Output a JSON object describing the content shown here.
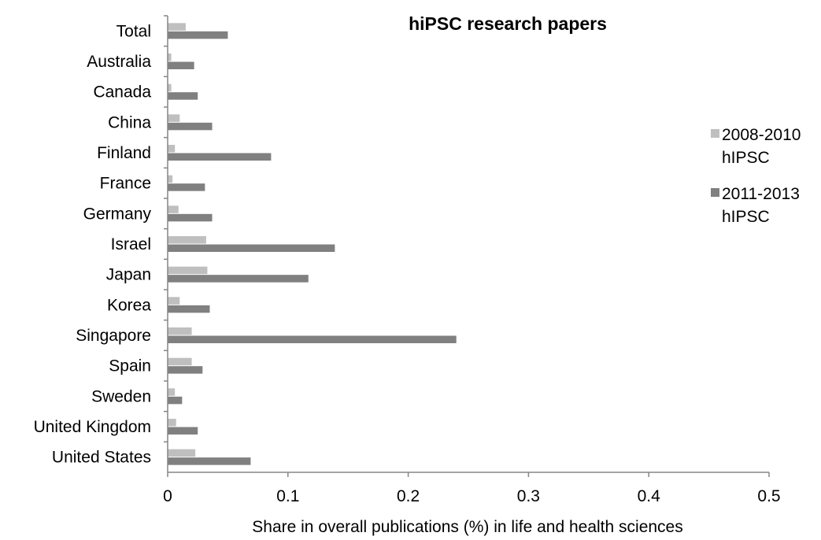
{
  "chart_data": {
    "type": "bar",
    "orientation": "horizontal",
    "title": "hiPSC research papers",
    "xlabel": "Share in overall publications (%) in life and health sciences",
    "ylabel": "",
    "xlim": [
      0,
      0.5
    ],
    "xticks": [
      "0",
      "0.1",
      "0.2",
      "0.3",
      "0.4",
      "0.5"
    ],
    "grid": false,
    "legend_position": "right",
    "categories": [
      "Total",
      "Australia",
      "Canada",
      "China",
      "Finland",
      "France",
      "Germany",
      "Israel",
      "Japan",
      "Korea",
      "Singapore",
      "Spain",
      "Sweden",
      "United Kingdom",
      "United States"
    ],
    "series": [
      {
        "name": "2008-2010",
        "name_line2": "hIPSC",
        "color": "#BFBFBF",
        "values": [
          0.015,
          0.003,
          0.003,
          0.01,
          0.006,
          0.004,
          0.009,
          0.032,
          0.033,
          0.01,
          0.02,
          0.02,
          0.006,
          0.007,
          0.023
        ]
      },
      {
        "name": "2011-2013",
        "name_line2": "hIPSC",
        "color": "#808080",
        "values": [
          0.05,
          0.022,
          0.025,
          0.037,
          0.086,
          0.031,
          0.037,
          0.139,
          0.117,
          0.035,
          0.24,
          0.029,
          0.012,
          0.025,
          0.069
        ]
      }
    ]
  }
}
